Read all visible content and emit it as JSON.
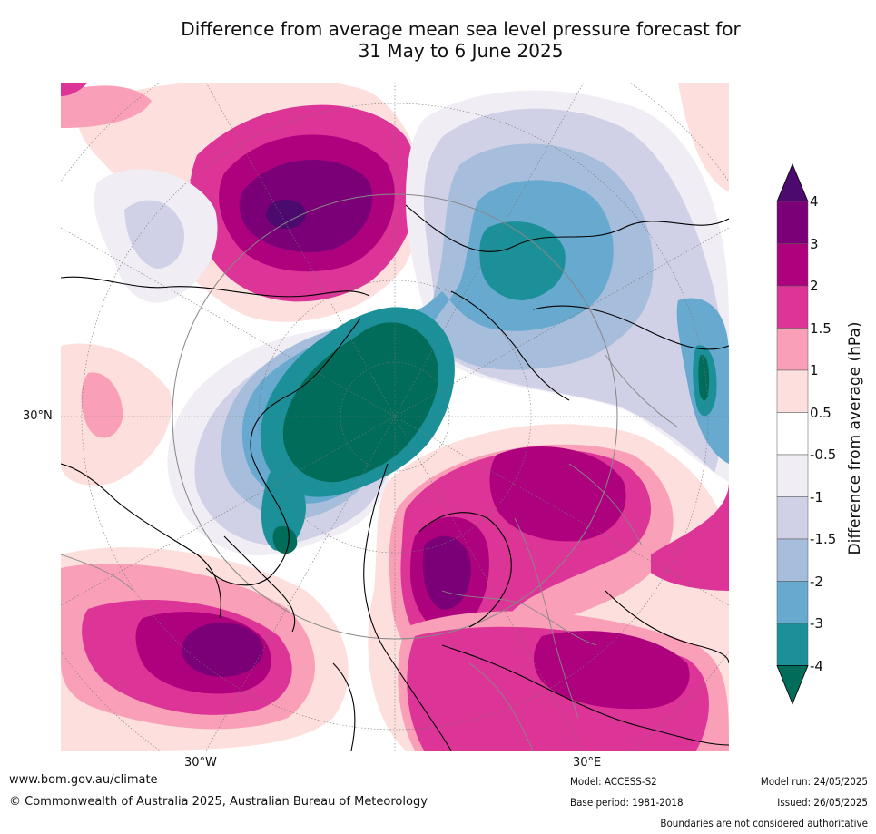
{
  "title": {
    "line1": "Difference from average mean sea level pressure forecast for",
    "line2": "31 May to 6 June 2025"
  },
  "map": {
    "labels": {
      "lat_30n": "30°N",
      "lon_30w": "30°W",
      "lon_30e": "30°E"
    }
  },
  "colorbar": {
    "title": "Difference from average (hPa)",
    "ticks": [
      "4",
      "3",
      "2",
      "1.5",
      "1",
      "0.5",
      "-0.5",
      "-1",
      "-1.5",
      "-2",
      "-3",
      "-4"
    ],
    "colors": {
      "gt4": "#4d0a6e",
      "b3_4": "#7b0077",
      "b2_3": "#ae017e",
      "b15_2": "#dd3497",
      "b1_15": "#f9a0b8",
      "b05_1": "#fde0dd",
      "neutral": "#ffffff",
      "n05_1": "#f0edf5",
      "n1_15": "#d0d1e6",
      "n15_2": "#a6bddb",
      "n2_3": "#67a9cf",
      "n3_4": "#1c9099",
      "lt4": "#016c59"
    }
  },
  "footer": {
    "website": "www.bom.gov.au/climate",
    "copyright": "© Commonwealth of Australia 2025, Australian Bureau of Meteorology",
    "model": "Model: ACCESS-S2",
    "base_period": "Base period: 1981-2018",
    "model_run": "Model run: 24/05/2025",
    "issued": "Issued: 26/05/2025",
    "disclaimer": "Boundaries are not considered authoritative"
  }
}
